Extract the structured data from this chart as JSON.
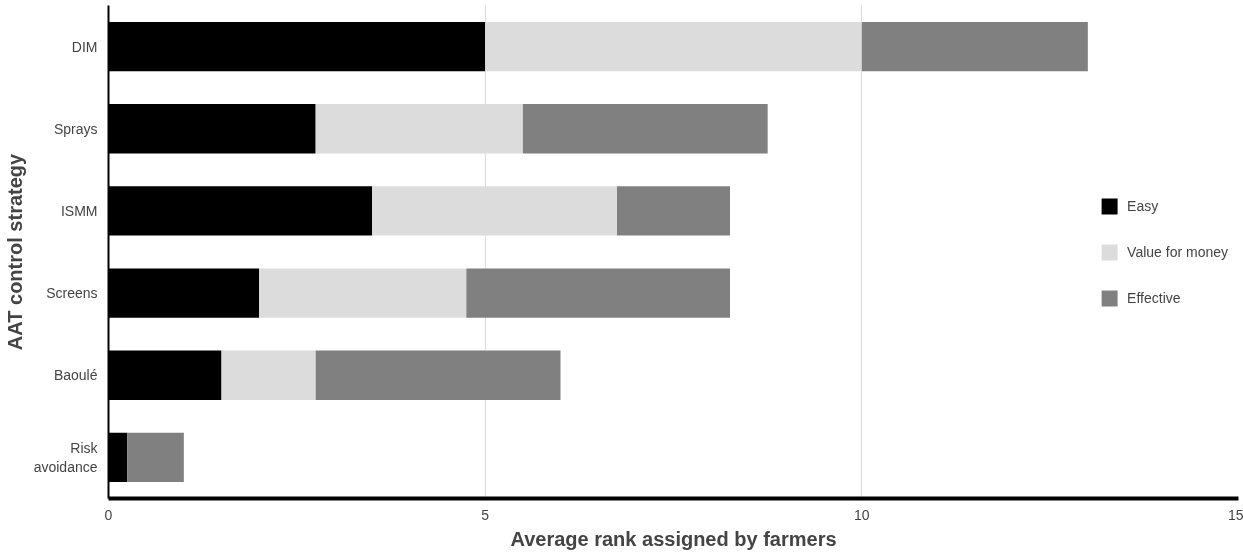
{
  "chart_data": {
    "type": "bar",
    "orientation": "horizontal",
    "stacked": true,
    "xlabel": "Average rank assigned by farmers",
    "ylabel": "AAT control strategy",
    "categories": [
      "DIM",
      "Sprays",
      "ISMM",
      "Screens",
      "Baoulé",
      "Risk avoidance"
    ],
    "series": [
      {
        "name": "Easy",
        "color": "#000000",
        "values": [
          5.0,
          2.75,
          3.5,
          2.0,
          1.5,
          0.25
        ]
      },
      {
        "name": "Value for money",
        "color": "#dcdcdc",
        "values": [
          5.0,
          2.75,
          3.25,
          2.75,
          1.25,
          0
        ]
      },
      {
        "name": "Effective",
        "color": "#808080",
        "values": [
          3.0,
          3.25,
          1.5,
          3.5,
          3.25,
          0.75
        ]
      }
    ],
    "xlim": [
      0,
      15
    ],
    "xticks": [
      0,
      5,
      10,
      15
    ],
    "grid": "x",
    "legend": "right"
  }
}
